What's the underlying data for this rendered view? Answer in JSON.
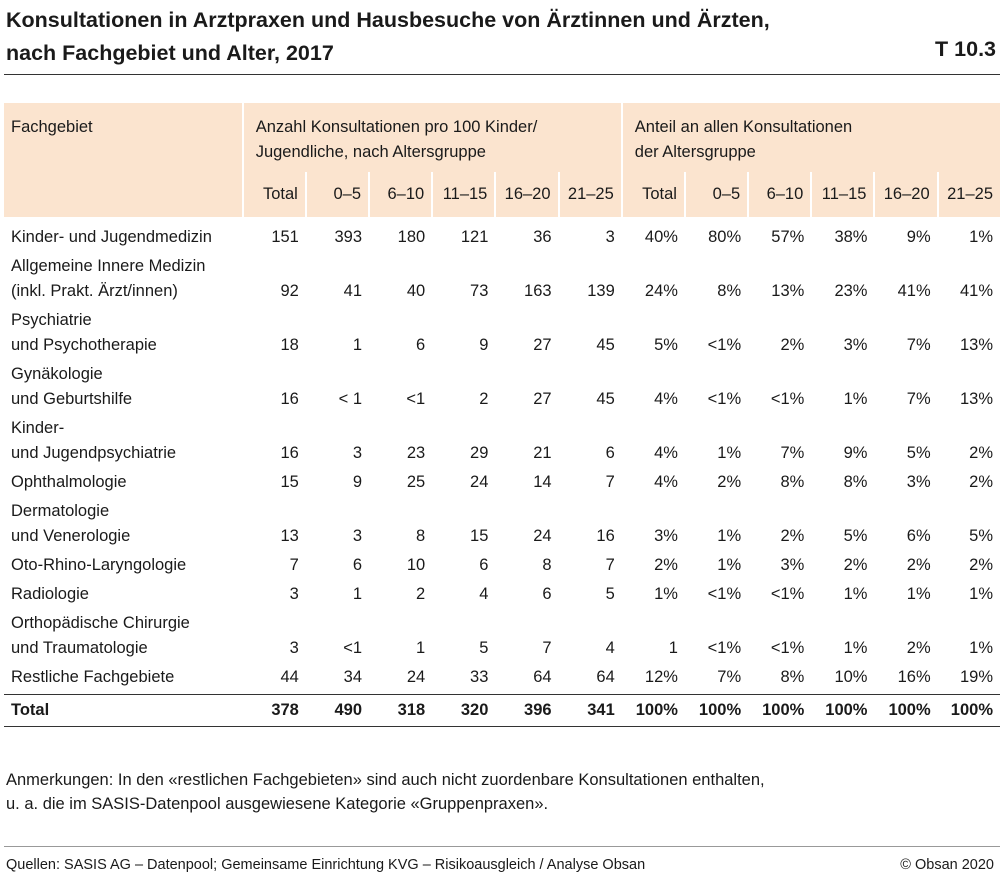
{
  "title": {
    "line1": "Konsultationen in Arztpraxen und Hausbesuche von Ärztinnen und Ärzten,",
    "line2": "nach Fachgebiet und Alter, 2017",
    "table_id": "T 10.3"
  },
  "table": {
    "header_fachgebiet": "Fachgebiet",
    "group1_line1": "Anzahl Konsultationen pro 100 Kinder/",
    "group1_line2": "Jugendliche, nach Altersgruppe",
    "group2_line1": "Anteil an allen Konsultationen",
    "group2_line2": "der Altersgruppe",
    "subheaders": [
      "Total",
      "0–5",
      "6–10",
      "11–15",
      "16–20",
      "21–25",
      "Total",
      "0–5",
      "6–10",
      "11–15",
      "16–20",
      "21–25"
    ],
    "rows": [
      {
        "label1": "Kinder- und Jugendmedizin",
        "label2": "",
        "values": [
          "151",
          "393",
          "180",
          "121",
          "36",
          "3",
          "40%",
          "80%",
          "57%",
          "38%",
          "9%",
          "1%"
        ]
      },
      {
        "label1": "Allgemeine Innere Medizin",
        "label2": "(inkl. Prakt. Ärzt/innen)",
        "values": [
          "92",
          "41",
          "40",
          "73",
          "163",
          "139",
          "24%",
          "8%",
          "13%",
          "23%",
          "41%",
          "41%"
        ]
      },
      {
        "label1": "Psychiatrie",
        "label2": "und Psychotherapie",
        "values": [
          "18",
          "1",
          "6",
          "9",
          "27",
          "45",
          "5%",
          "<1%",
          "2%",
          "3%",
          "7%",
          "13%"
        ]
      },
      {
        "label1": "Gynäkologie",
        "label2": "und Geburtshilfe",
        "values": [
          "16",
          "< 1",
          "<1",
          "2",
          "27",
          "45",
          "4%",
          "<1%",
          "<1%",
          "1%",
          "7%",
          "13%"
        ]
      },
      {
        "label1": "Kinder-",
        "label2": "und Jugendpsychiatrie",
        "values": [
          "16",
          "3",
          "23",
          "29",
          "21",
          "6",
          "4%",
          "1%",
          "7%",
          "9%",
          "5%",
          "2%"
        ]
      },
      {
        "label1": "Ophthalmologie",
        "label2": "",
        "values": [
          "15",
          "9",
          "25",
          "24",
          "14",
          "7",
          "4%",
          "2%",
          "8%",
          "8%",
          "3%",
          "2%"
        ]
      },
      {
        "label1": "Dermatologie",
        "label2": "und Venerologie",
        "values": [
          "13",
          "3",
          "8",
          "15",
          "24",
          "16",
          "3%",
          "1%",
          "2%",
          "5%",
          "6%",
          "5%"
        ]
      },
      {
        "label1": "Oto-Rhino-Laryngologie",
        "label2": "",
        "values": [
          "7",
          "6",
          "10",
          "6",
          "8",
          "7",
          "2%",
          "1%",
          "3%",
          "2%",
          "2%",
          "2%"
        ]
      },
      {
        "label1": "Radiologie",
        "label2": "",
        "values": [
          "3",
          "1",
          "2",
          "4",
          "6",
          "5",
          "1%",
          "<1%",
          "<1%",
          "1%",
          "1%",
          "1%"
        ]
      },
      {
        "label1": "Orthopädische Chirurgie",
        "label2": "und Traumatologie",
        "values": [
          "3",
          "<1",
          "1",
          "5",
          "7",
          "4",
          "1",
          "<1%",
          "<1%",
          "1%",
          "2%",
          "1%"
        ]
      },
      {
        "label1": "Restliche Fachgebiete",
        "label2": "",
        "values": [
          "44",
          "34",
          "24",
          "33",
          "64",
          "64",
          "12%",
          "7%",
          "8%",
          "10%",
          "16%",
          "19%"
        ]
      }
    ],
    "total": {
      "label": "Total",
      "values": [
        "378",
        "490",
        "318",
        "320",
        "396",
        "341",
        "100%",
        "100%",
        "100%",
        "100%",
        "100%",
        "100%"
      ]
    }
  },
  "notes": {
    "line1": "Anmerkungen: In den «restlichen Fachgebieten» sind auch nicht zuordenbare Konsultationen enthalten,",
    "line2": "u. a. die im SASIS-Datenpool ausgewiesene Kategorie «Gruppenpraxen»."
  },
  "footer": {
    "source": "Quellen: SASIS AG – Datenpool; Gemeinsame Einrichtung KVG – Risikoausgleich / Analyse Obsan",
    "copyright": "© Obsan 2020"
  }
}
